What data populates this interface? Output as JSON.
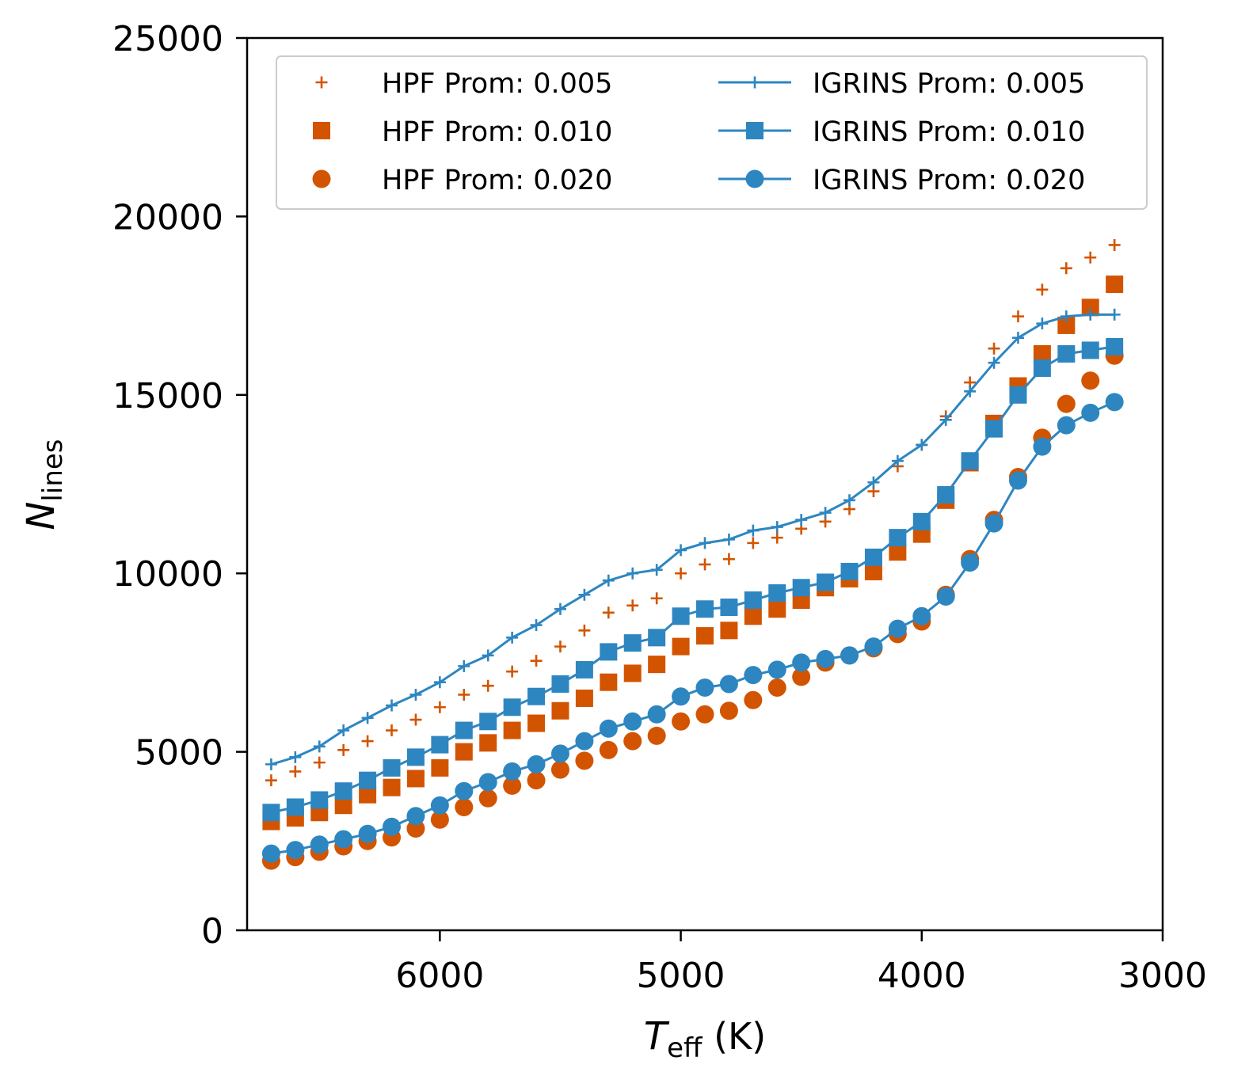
{
  "chart_data": {
    "type": "scatter",
    "x_label": {
      "symbol": "T",
      "subscript": "eff",
      "unit": " (K)"
    },
    "y_label": {
      "symbol": "N",
      "subscript": "lines"
    },
    "xlim": [
      6800,
      3000
    ],
    "ylim": [
      0,
      25000
    ],
    "x_ticks": [
      6000,
      5000,
      4000,
      3000
    ],
    "y_ticks": [
      0,
      5000,
      10000,
      15000,
      20000,
      25000
    ],
    "x_tick_labels": [
      "6000",
      "5000",
      "4000",
      "3000"
    ],
    "y_tick_labels": [
      "0",
      "5000",
      "10000",
      "15000",
      "20000",
      "25000"
    ],
    "grid": false,
    "legend_position": "top",
    "x": [
      6700,
      6600,
      6500,
      6400,
      6300,
      6200,
      6100,
      6000,
      5900,
      5800,
      5700,
      5600,
      5500,
      5400,
      5300,
      5200,
      5100,
      5000,
      4900,
      4800,
      4700,
      4600,
      4500,
      4400,
      4300,
      4200,
      4100,
      4000,
      3900,
      3800,
      3700,
      3600,
      3500,
      3400,
      3300,
      3200
    ],
    "series": [
      {
        "name": "HPF Prom: 0.005",
        "marker": "plus",
        "line": false,
        "color": "#d35400",
        "values": [
          4200,
          4450,
          4700,
          5050,
          5300,
          5600,
          5900,
          6250,
          6600,
          6850,
          7250,
          7550,
          7950,
          8400,
          8900,
          9100,
          9300,
          10000,
          10250,
          10400,
          10850,
          11000,
          11250,
          11450,
          11800,
          12300,
          13000,
          13600,
          14400,
          15350,
          16300,
          17200,
          17950,
          18550,
          18850,
          19200
        ]
      },
      {
        "name": "HPF Prom: 0.010",
        "marker": "square",
        "line": false,
        "color": "#d35400",
        "values": [
          3050,
          3150,
          3300,
          3500,
          3800,
          4000,
          4250,
          4550,
          5000,
          5250,
          5600,
          5800,
          6150,
          6500,
          6950,
          7200,
          7450,
          7950,
          8250,
          8400,
          8800,
          9000,
          9250,
          9600,
          9850,
          10050,
          10600,
          11100,
          12050,
          13100,
          14200,
          15250,
          16150,
          16950,
          17450,
          18100
        ]
      },
      {
        "name": "HPF Prom: 0.020",
        "marker": "circle",
        "line": false,
        "color": "#d35400",
        "values": [
          1950,
          2050,
          2200,
          2350,
          2500,
          2600,
          2850,
          3100,
          3450,
          3700,
          4050,
          4200,
          4500,
          4750,
          5050,
          5300,
          5450,
          5850,
          6050,
          6150,
          6450,
          6800,
          7100,
          7500,
          7700,
          7900,
          8300,
          8650,
          9400,
          10400,
          11500,
          12700,
          13800,
          14750,
          15400,
          16100
        ]
      },
      {
        "name": "IGRINS Prom: 0.005",
        "marker": "plus",
        "line": true,
        "color": "#2e86c1",
        "values": [
          4650,
          4850,
          5150,
          5600,
          5950,
          6300,
          6600,
          6950,
          7400,
          7700,
          8200,
          8550,
          9000,
          9400,
          9800,
          10000,
          10100,
          10650,
          10850,
          10950,
          11200,
          11300,
          11500,
          11700,
          12050,
          12550,
          13150,
          13600,
          14300,
          15100,
          15900,
          16600,
          17000,
          17200,
          17250,
          17250
        ]
      },
      {
        "name": "IGRINS Prom: 0.010",
        "marker": "square",
        "line": true,
        "color": "#2e86c1",
        "values": [
          3300,
          3450,
          3650,
          3900,
          4200,
          4550,
          4850,
          5200,
          5600,
          5850,
          6250,
          6550,
          6900,
          7300,
          7800,
          8050,
          8200,
          8800,
          9000,
          9050,
          9250,
          9450,
          9600,
          9750,
          10050,
          10450,
          11000,
          11450,
          12200,
          13150,
          14050,
          15000,
          15750,
          16150,
          16250,
          16350
        ]
      },
      {
        "name": "IGRINS Prom: 0.020",
        "marker": "circle",
        "line": true,
        "color": "#2e86c1",
        "values": [
          2150,
          2250,
          2400,
          2550,
          2700,
          2900,
          3200,
          3500,
          3900,
          4150,
          4450,
          4650,
          4950,
          5300,
          5650,
          5850,
          6050,
          6550,
          6800,
          6900,
          7150,
          7300,
          7500,
          7600,
          7700,
          7950,
          8450,
          8800,
          9350,
          10300,
          11400,
          12600,
          13550,
          14150,
          14500,
          14800
        ]
      }
    ]
  }
}
